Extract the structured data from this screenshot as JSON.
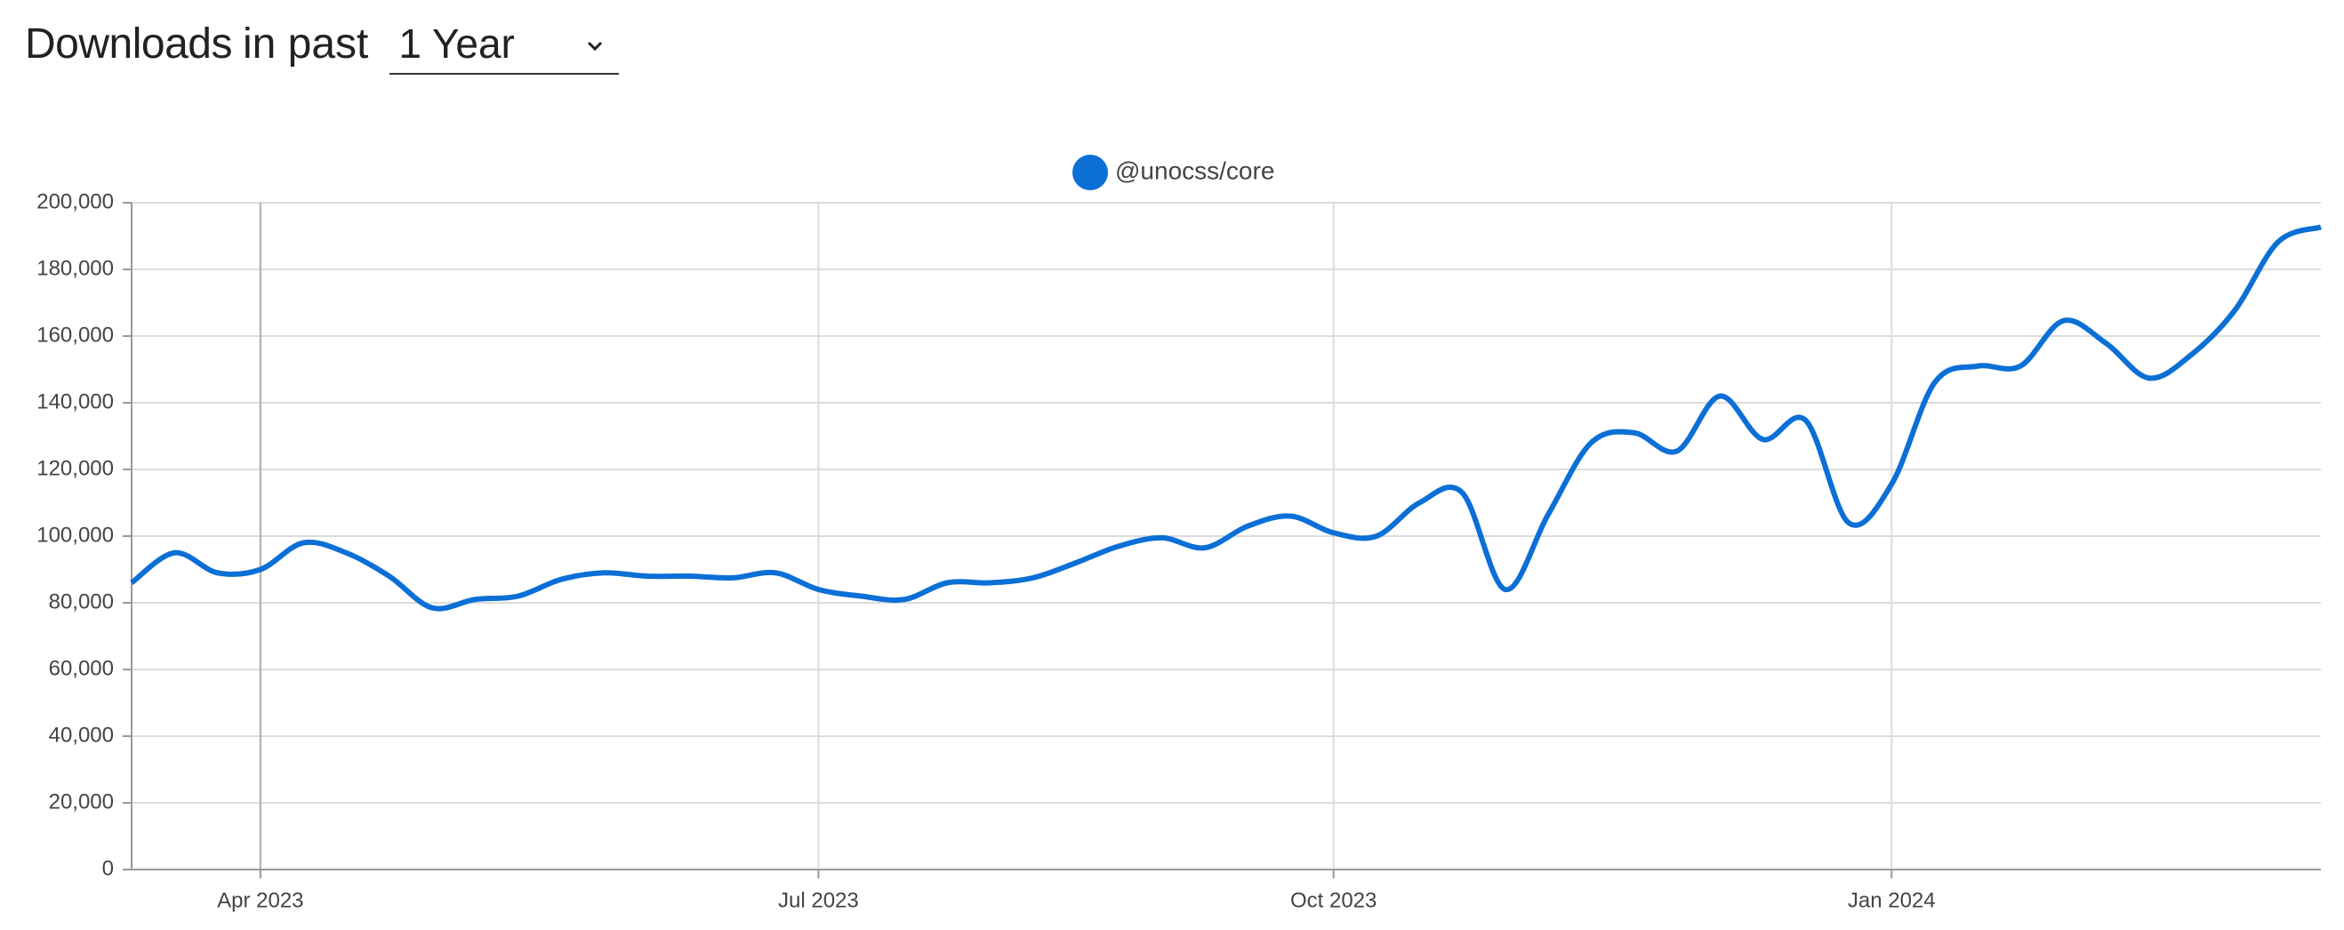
{
  "header": {
    "title": "Downloads",
    "subtitle": "in past",
    "range": "1 Year"
  },
  "chart_data": {
    "type": "line",
    "categories": [
      null,
      null,
      null,
      "Apr 2023",
      null,
      null,
      null,
      null,
      null,
      null,
      null,
      null,
      null,
      null,
      null,
      null,
      "Jul 2023",
      null,
      null,
      null,
      null,
      null,
      null,
      null,
      null,
      null,
      null,
      null,
      "Oct 2023",
      null,
      null,
      null,
      null,
      null,
      null,
      null,
      null,
      null,
      null,
      null,
      null,
      "Jan 2024",
      null,
      null,
      null,
      null,
      null,
      null,
      null,
      null,
      null,
      null
    ],
    "series": [
      {
        "name": "@unocss/core",
        "color": "#0b6fd6",
        "values": [
          86000,
          95000,
          89000,
          90000,
          98000,
          95000,
          88000,
          78500,
          81000,
          82000,
          87000,
          89000,
          88000,
          88000,
          87500,
          89000,
          84000,
          82000,
          81000,
          86000,
          86000,
          87500,
          92000,
          97000,
          99500,
          96500,
          103000,
          106000,
          101000,
          100000,
          110000,
          113000,
          84000,
          106500,
          128000,
          131000,
          125500,
          142000,
          129000,
          134700,
          104000,
          115600,
          146000,
          151000,
          151000,
          164600,
          157800,
          147400,
          154600,
          167800,
          188200,
          192700
        ]
      }
    ],
    "ylim": [
      0,
      200000
    ],
    "yticks": [
      0,
      {
        "value": 20000,
        "label": "20,000"
      },
      {
        "value": 40000,
        "label": "40,000"
      },
      {
        "value": 60000,
        "label": "60,000"
      },
      {
        "value": 80000,
        "label": "80,000"
      },
      {
        "value": 100000,
        "label": "100,000"
      },
      {
        "value": 120000,
        "label": "120,000"
      },
      {
        "value": 140000,
        "label": "140,000"
      },
      {
        "value": 160000,
        "label": "160,000"
      },
      {
        "value": 180000,
        "label": "180,000"
      },
      {
        "value": 200000,
        "label": "200,000"
      }
    ],
    "grid": true
  }
}
